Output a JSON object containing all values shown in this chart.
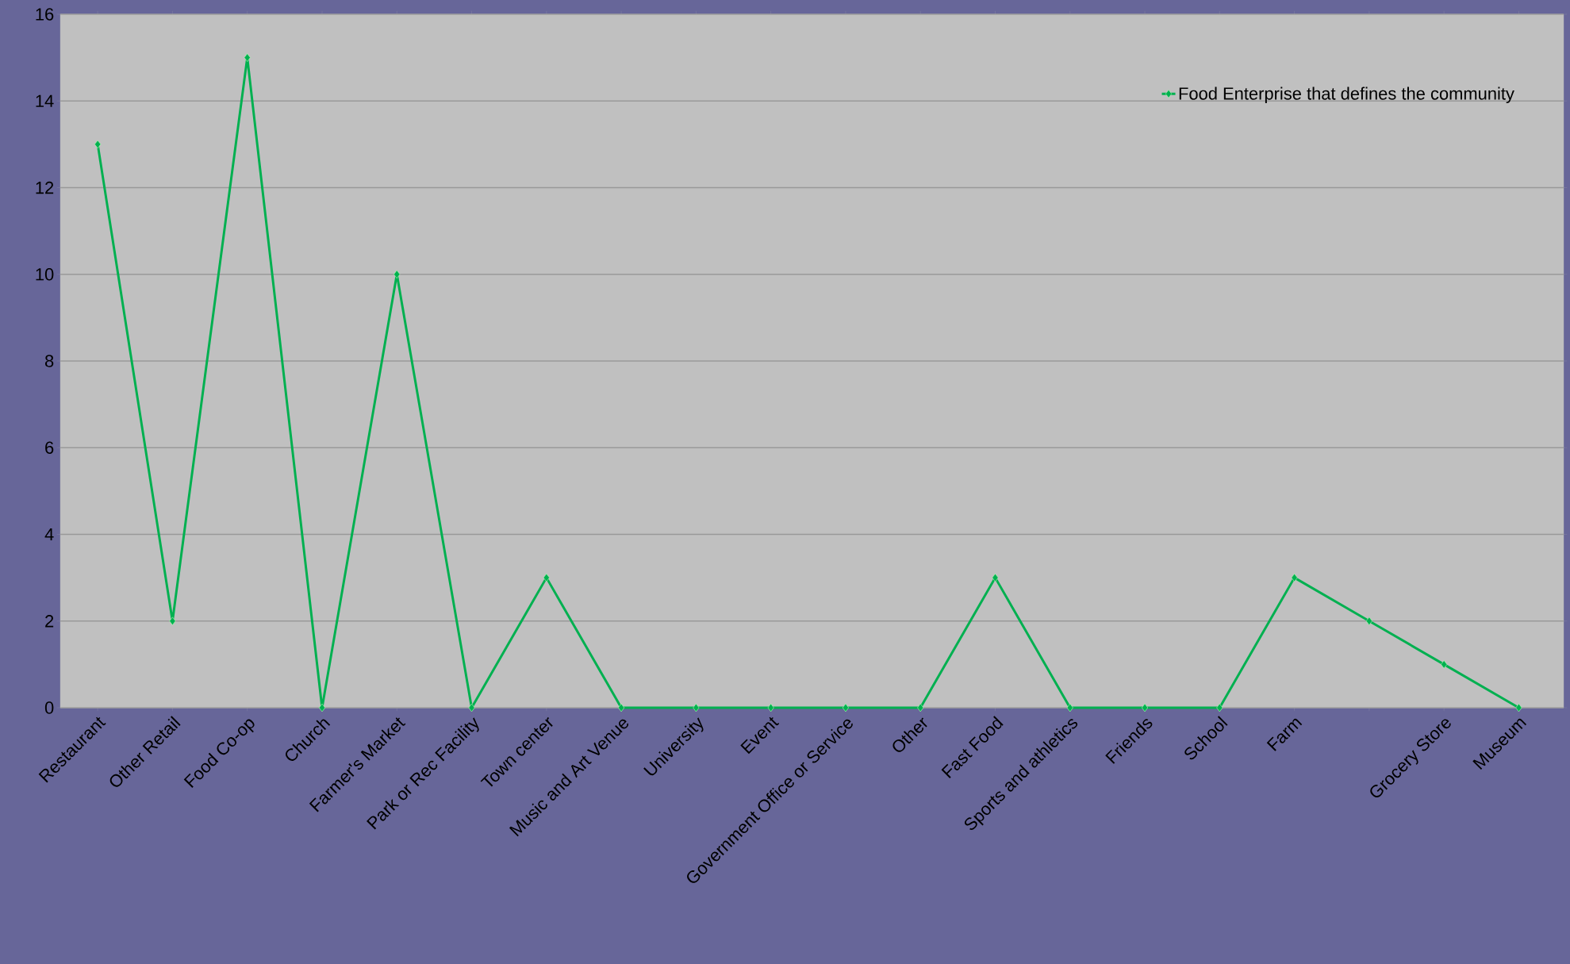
{
  "chart_data": {
    "type": "line",
    "categories": [
      "Restaurant",
      "Other Retail",
      "Food Co-op",
      "Church",
      "Farmer's Market",
      "Park or Rec Facility",
      "Town center",
      "Music and Art Venue",
      "University",
      "Event",
      "Government Office or Service",
      "Other",
      "Fast Food",
      "Sports and athletics",
      "Friends",
      "School",
      "Farm",
      null,
      "Grocery Store",
      "Museum"
    ],
    "series": [
      {
        "name": "Food Enterprise that defines the community",
        "color": "#00b050",
        "values": [
          13,
          2,
          15,
          0,
          10,
          0,
          3,
          0,
          0,
          0,
          0,
          0,
          3,
          0,
          0,
          0,
          3,
          2,
          1,
          0
        ]
      }
    ],
    "ylim": [
      0,
      16
    ],
    "yticks": [
      0,
      2,
      4,
      6,
      8,
      10,
      12,
      14,
      16
    ],
    "grid": "y",
    "legend": "top right",
    "marker": "diamond",
    "line_style": "solid"
  }
}
